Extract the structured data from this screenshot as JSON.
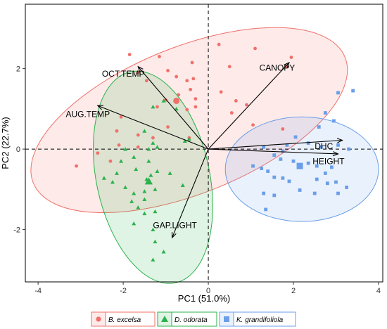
{
  "chart_data": {
    "type": "scatter",
    "subtype": "pca-biplot",
    "xlabel": "PC1 (51.0%)",
    "ylabel": "PC2 (22.7%)",
    "xlim": [
      -4.3,
      4.1
    ],
    "ylim": [
      -3.3,
      3.6
    ],
    "xticks": [
      -4,
      -2,
      0,
      2,
      4
    ],
    "yticks": [
      -2,
      0,
      2
    ],
    "grid": false,
    "reference_lines": {
      "x": 0,
      "y": 0,
      "style": "dashed"
    },
    "legend": {
      "position": "bottom"
    },
    "series": [
      {
        "name": "B. excelsa",
        "color": "#F0706A",
        "marker": "circle",
        "ellipse": {
          "cx": -0.45,
          "cy": 0.72,
          "rx": 3.95,
          "ry": 1.82,
          "angle_deg": 22
        },
        "centroid": [
          -0.75,
          1.2
        ],
        "points": [
          [
            -1.85,
            2.35
          ],
          [
            -1.65,
            1.9
          ],
          [
            -1.45,
            1.7
          ],
          [
            -1.15,
            2.3
          ],
          [
            -0.95,
            1.95
          ],
          [
            -0.75,
            1.8
          ],
          [
            -0.5,
            1.7
          ],
          [
            -0.38,
            2.15
          ],
          [
            -0.35,
            1.75
          ],
          [
            -0.42,
            1.48
          ],
          [
            -0.7,
            1.35
          ],
          [
            -1.0,
            1.22
          ],
          [
            -0.5,
            0.98
          ],
          [
            -0.3,
            1.25
          ],
          [
            -0.95,
            0.55
          ],
          [
            -1.65,
            0.35
          ],
          [
            -1.3,
            0.28
          ],
          [
            -2.05,
            0.8
          ],
          [
            -2.15,
            0.45
          ],
          [
            -2.1,
            0.1
          ],
          [
            -2.3,
            -0.3
          ],
          [
            -2.6,
            -0.1
          ],
          [
            -3.1,
            -0.42
          ],
          [
            -1.65,
            0.05
          ],
          [
            -1.2,
            1.05
          ],
          [
            -0.45,
            0.28
          ],
          [
            0.3,
            1.42
          ],
          [
            0.5,
            2.05
          ],
          [
            0.65,
            1.2
          ],
          [
            0.9,
            1.1
          ],
          [
            1.05,
            0.6
          ],
          [
            0.55,
            0.9
          ],
          [
            1.1,
            2.5
          ],
          [
            1.85,
            2.05
          ],
          [
            1.95,
            2.28
          ],
          [
            1.75,
            0.5
          ],
          [
            0.25,
            2.6
          ],
          [
            -0.3,
            1.05
          ]
        ]
      },
      {
        "name": "D. odorata",
        "color": "#2BB24C",
        "marker": "triangle",
        "ellipse": {
          "cx": -1.3,
          "cy": -0.7,
          "rx": 1.33,
          "ry": 2.68,
          "angle_deg": 12
        },
        "centroid": [
          -1.4,
          -0.8
        ],
        "points": [
          [
            -1.3,
            1.05
          ],
          [
            -1.05,
            1.2
          ],
          [
            -0.75,
            1.0
          ],
          [
            -1.5,
            0.45
          ],
          [
            -1.3,
            0.15
          ],
          [
            -1.2,
            0.05
          ],
          [
            -1.4,
            0.0
          ],
          [
            -0.55,
            0.2
          ],
          [
            -0.45,
            0.25
          ],
          [
            -1.95,
            0.0
          ],
          [
            -1.75,
            -0.2
          ],
          [
            -2.05,
            -0.3
          ],
          [
            -1.7,
            -0.5
          ],
          [
            -1.4,
            -0.3
          ],
          [
            -2.15,
            -0.6
          ],
          [
            -2.45,
            -0.72
          ],
          [
            -2.25,
            -0.82
          ],
          [
            -1.95,
            -0.95
          ],
          [
            -1.75,
            -1.1
          ],
          [
            -1.45,
            -0.75
          ],
          [
            -1.2,
            -0.55
          ],
          [
            -1.5,
            -1.25
          ],
          [
            -1.65,
            -1.45
          ],
          [
            -1.35,
            -0.65
          ],
          [
            -1.25,
            -1.0
          ],
          [
            -0.9,
            -0.6
          ],
          [
            -0.6,
            -0.9
          ],
          [
            -1.8,
            -1.3
          ],
          [
            -1.75,
            -1.85
          ],
          [
            -1.5,
            -1.6
          ],
          [
            -1.3,
            -2.0
          ],
          [
            -1.25,
            -2.3
          ],
          [
            -1.3,
            -2.75
          ],
          [
            -1.05,
            -2.55
          ],
          [
            -1.25,
            -1.55
          ],
          [
            -1.5,
            -1.05
          ]
        ]
      },
      {
        "name": "K. grandifoliola",
        "color": "#6A9EE8",
        "marker": "square",
        "ellipse": {
          "cx": 2.2,
          "cy": -0.5,
          "rx": 1.8,
          "ry": 1.3,
          "angle_deg": 0
        },
        "centroid": [
          2.15,
          -0.42
        ],
        "points": [
          [
            3.4,
            1.45
          ],
          [
            3.05,
            1.4
          ],
          [
            2.75,
            0.9
          ],
          [
            2.95,
            0.7
          ],
          [
            2.6,
            0.55
          ],
          [
            2.05,
            0.3
          ],
          [
            2.35,
            0.15
          ],
          [
            1.85,
            0.1
          ],
          [
            2.65,
            0.05
          ],
          [
            3.05,
            0.1
          ],
          [
            3.3,
            0.0
          ],
          [
            1.3,
            0.05
          ],
          [
            1.75,
            -0.05
          ],
          [
            1.55,
            -0.15
          ],
          [
            1.7,
            -0.25
          ],
          [
            2.0,
            -0.3
          ],
          [
            2.35,
            -0.35
          ],
          [
            2.55,
            -0.42
          ],
          [
            2.9,
            -0.45
          ],
          [
            2.75,
            -0.6
          ],
          [
            1.05,
            -0.42
          ],
          [
            1.25,
            -0.48
          ],
          [
            1.4,
            -0.55
          ],
          [
            1.55,
            -0.7
          ],
          [
            1.75,
            -0.72
          ],
          [
            1.9,
            -0.8
          ],
          [
            2.55,
            -0.75
          ],
          [
            2.8,
            -0.85
          ],
          [
            3.0,
            -0.82
          ],
          [
            2.15,
            -1.02
          ],
          [
            2.5,
            -1.1
          ],
          [
            1.3,
            -1.1
          ],
          [
            1.55,
            -1.15
          ],
          [
            1.35,
            -1.5
          ],
          [
            3.25,
            -0.95
          ],
          [
            3.05,
            -1.1
          ]
        ]
      }
    ],
    "loadings": [
      {
        "label": "CANOPY",
        "x": 1.9,
        "y": 2.15,
        "label_x": 1.2,
        "label_y": 1.95
      },
      {
        "label": "OCT.TEMP",
        "x": -1.65,
        "y": 2.05,
        "label_x": -2.5,
        "label_y": 1.8
      },
      {
        "label": "AUG.TEMP",
        "x": -2.6,
        "y": 1.08,
        "label_x": -3.35,
        "label_y": 0.8
      },
      {
        "label": "DHC",
        "x": 3.15,
        "y": 0.22,
        "label_x": 2.5,
        "label_y": 0.0
      },
      {
        "label": "HEIGHT",
        "x": 3.05,
        "y": -0.12,
        "label_x": 2.45,
        "label_y": -0.37
      },
      {
        "label": "GAP.LIGHT",
        "x": -0.85,
        "y": -2.2,
        "label_x": -1.3,
        "label_y": -1.96
      }
    ]
  }
}
